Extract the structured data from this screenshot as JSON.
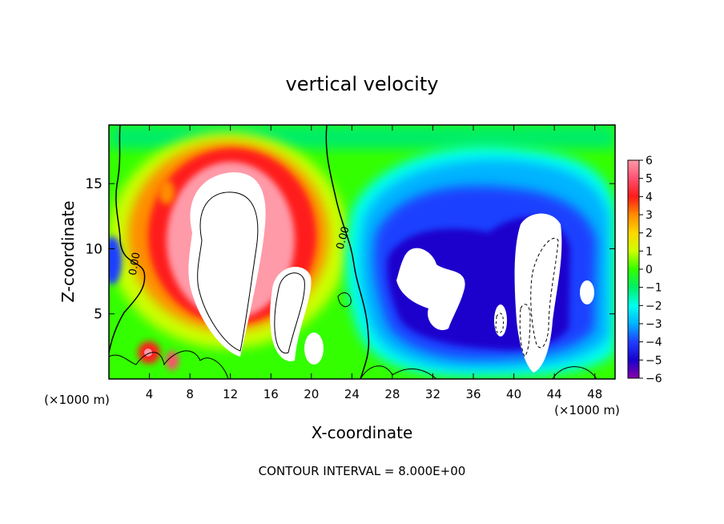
{
  "chart_data": {
    "type": "heatmap",
    "title": "vertical velocity",
    "xlabel": "X-coordinate",
    "ylabel": "Z-coordinate",
    "x_unit_left": "(×1000 m)",
    "x_unit_right": "(×1000 m)",
    "footer": "CONTOUR INTERVAL = 8.000E+00",
    "xlim": [
      0,
      50
    ],
    "ylim": [
      0,
      19.5
    ],
    "x_ticks": [
      4,
      8,
      12,
      16,
      20,
      24,
      28,
      32,
      36,
      40,
      44,
      48
    ],
    "y_ticks": [
      5,
      10,
      15
    ],
    "contour_labels": [
      "0.00",
      "0.00"
    ],
    "colorbar": {
      "ticks": [
        6,
        5,
        4,
        3,
        2,
        1,
        0,
        -1,
        -2,
        -3,
        -4,
        -5,
        -6
      ],
      "colors": [
        "#ff9aa8",
        "#ff5070",
        "#ff1a1a",
        "#ff8c00",
        "#ffd700",
        "#ccff00",
        "#33ff00",
        "#00ee66",
        "#00ffee",
        "#00b3ff",
        "#1f3fff",
        "#1a00cc",
        "#8800aa"
      ]
    }
  }
}
